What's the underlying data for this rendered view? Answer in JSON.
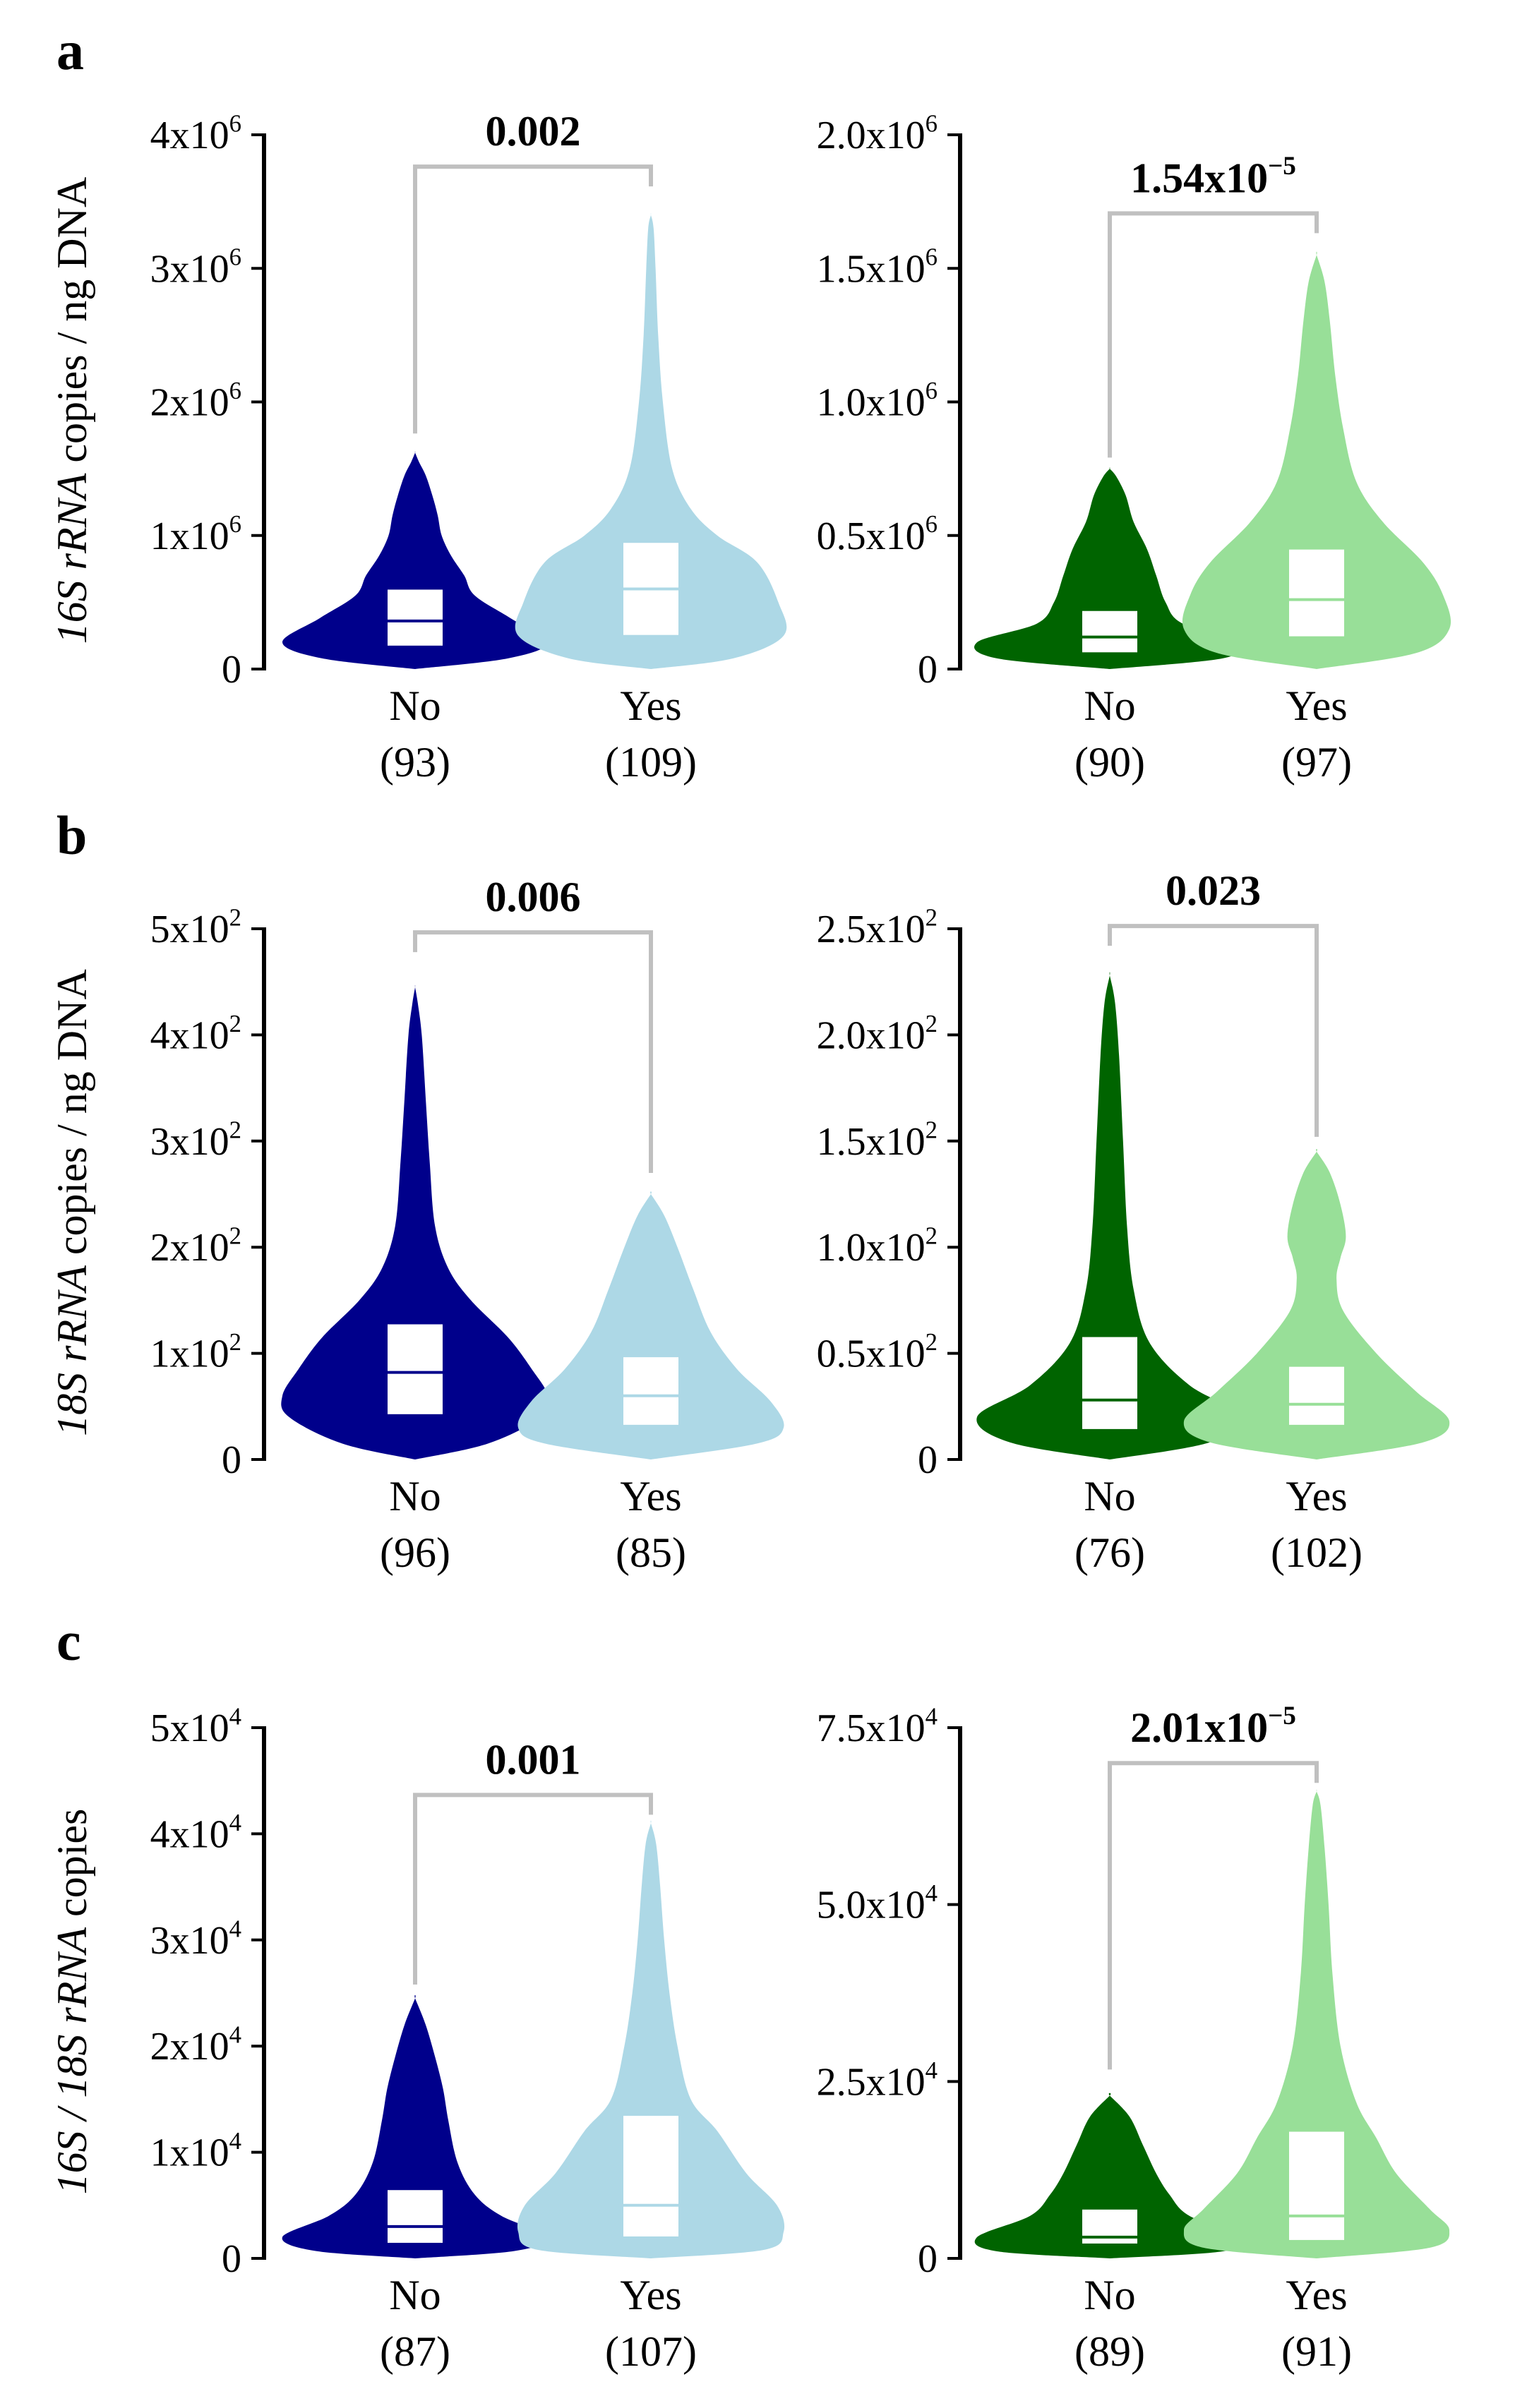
{
  "panel_labels": [
    "a",
    "b",
    "c"
  ],
  "row_ylabels": [
    {
      "italic": "16S rRNA",
      "rest": " copies / ng DNA"
    },
    {
      "italic": "18S rRNA",
      "rest": " copies / ng DNA"
    },
    {
      "italic": "16S / 18S rRNA",
      "rest": " copies"
    }
  ],
  "colors": {
    "no_blue": "#00008b",
    "yes_blue": "#add8e6",
    "no_green": "#006400",
    "yes_green": "#98df98",
    "bracket": "#c0c0c0",
    "axis": "#000000",
    "box": "#ffffff"
  },
  "chart_data": [
    {
      "type": "violin",
      "panel": "a",
      "position": "left",
      "color_scheme": "blue",
      "ylim": [
        0,
        4000000
      ],
      "ticks": [
        {
          "v": 0,
          "m": "0",
          "e": ""
        },
        {
          "v": 1000000,
          "m": "1x10",
          "e": "6"
        },
        {
          "v": 2000000,
          "m": "2x10",
          "e": "6"
        },
        {
          "v": 3000000,
          "m": "3x10",
          "e": "6"
        },
        {
          "v": 4000000,
          "m": "4x10",
          "e": "6"
        }
      ],
      "pvalue": {
        "m": "0.002",
        "e": ""
      },
      "bracket_bottoms": [
        1700000,
        3550000
      ],
      "groups": [
        {
          "label": "No",
          "n": "(93)",
          "q1": 170000,
          "median": 360000,
          "q3": 600000,
          "profile": [
            [
              0,
              0
            ],
            [
              80000,
              0.7
            ],
            [
              200000,
              1
            ],
            [
              380000,
              0.72
            ],
            [
              550000,
              0.45
            ],
            [
              700000,
              0.37
            ],
            [
              850000,
              0.27
            ],
            [
              1000000,
              0.2
            ],
            [
              1150000,
              0.17
            ],
            [
              1300000,
              0.13
            ],
            [
              1450000,
              0.08
            ],
            [
              1550000,
              0.03
            ],
            [
              1620000,
              0
            ]
          ]
        },
        {
          "label": "Yes",
          "n": "(109)",
          "q1": 250000,
          "median": 600000,
          "q3": 950000,
          "profile": [
            [
              0,
              0
            ],
            [
              80000,
              0.62
            ],
            [
              250000,
              1
            ],
            [
              500000,
              0.96
            ],
            [
              800000,
              0.8
            ],
            [
              1000000,
              0.5
            ],
            [
              1200000,
              0.3
            ],
            [
              1500000,
              0.16
            ],
            [
              2000000,
              0.09
            ],
            [
              2500000,
              0.055
            ],
            [
              3000000,
              0.035
            ],
            [
              3300000,
              0.02
            ],
            [
              3400000,
              0
            ]
          ]
        }
      ]
    },
    {
      "type": "violin",
      "panel": "a",
      "position": "right",
      "color_scheme": "green",
      "ylim": [
        0,
        2000000
      ],
      "ticks": [
        {
          "v": 0,
          "m": "0",
          "e": ""
        },
        {
          "v": 500000,
          "m": "0.5x10",
          "e": "6"
        },
        {
          "v": 1000000,
          "m": "1.0x10",
          "e": "6"
        },
        {
          "v": 1500000,
          "m": "1.5x10",
          "e": "6"
        },
        {
          "v": 2000000,
          "m": "2.0x10",
          "e": "6"
        }
      ],
      "pvalue": {
        "m": "1.54x10",
        "e": "−5"
      },
      "bracket_bottoms": [
        760000,
        1600000
      ],
      "groups": [
        {
          "label": "No",
          "n": "(90)",
          "q1": 60000,
          "median": 120000,
          "q3": 220000,
          "profile": [
            [
              0,
              0
            ],
            [
              40000,
              0.85
            ],
            [
              100000,
              1
            ],
            [
              170000,
              0.55
            ],
            [
              250000,
              0.42
            ],
            [
              350000,
              0.35
            ],
            [
              450000,
              0.28
            ],
            [
              550000,
              0.18
            ],
            [
              650000,
              0.12
            ],
            [
              720000,
              0.05
            ],
            [
              750000,
              0
            ]
          ]
        },
        {
          "label": "Yes",
          "n": "(97)",
          "q1": 120000,
          "median": 260000,
          "q3": 450000,
          "profile": [
            [
              0,
              0
            ],
            [
              60000,
              0.75
            ],
            [
              150000,
              1
            ],
            [
              280000,
              0.95
            ],
            [
              400000,
              0.8
            ],
            [
              550000,
              0.5
            ],
            [
              700000,
              0.3
            ],
            [
              900000,
              0.2
            ],
            [
              1100000,
              0.14
            ],
            [
              1300000,
              0.1
            ],
            [
              1450000,
              0.06
            ],
            [
              1550000,
              0
            ]
          ]
        }
      ]
    },
    {
      "type": "violin",
      "panel": "b",
      "position": "left",
      "color_scheme": "blue",
      "ylim": [
        0,
        500
      ],
      "ticks": [
        {
          "v": 0,
          "m": "0",
          "e": ""
        },
        {
          "v": 100,
          "m": "1x10",
          "e": "2"
        },
        {
          "v": 200,
          "m": "2x10",
          "e": "2"
        },
        {
          "v": 300,
          "m": "3x10",
          "e": "2"
        },
        {
          "v": 400,
          "m": "4x10",
          "e": "2"
        },
        {
          "v": 500,
          "m": "5x10",
          "e": "2"
        }
      ],
      "pvalue": {
        "m": "0.006",
        "e": ""
      },
      "bracket_bottoms": [
        470,
        262
      ],
      "groups": [
        {
          "label": "No",
          "n": "(96)",
          "q1": 42,
          "median": 82,
          "q3": 128,
          "profile": [
            [
              0,
              0
            ],
            [
              15,
              0.55
            ],
            [
              40,
              0.95
            ],
            [
              60,
              1
            ],
            [
              85,
              0.88
            ],
            [
              115,
              0.7
            ],
            [
              150,
              0.42
            ],
            [
              180,
              0.25
            ],
            [
              220,
              0.15
            ],
            [
              280,
              0.11
            ],
            [
              340,
              0.08
            ],
            [
              400,
              0.05
            ],
            [
              430,
              0.02
            ],
            [
              445,
              0
            ]
          ]
        },
        {
          "label": "Yes",
          "n": "(85)",
          "q1": 32,
          "median": 60,
          "q3": 97,
          "profile": [
            [
              0,
              0
            ],
            [
              15,
              0.8
            ],
            [
              30,
              1
            ],
            [
              55,
              0.9
            ],
            [
              85,
              0.65
            ],
            [
              120,
              0.45
            ],
            [
              160,
              0.32
            ],
            [
              200,
              0.2
            ],
            [
              230,
              0.1
            ],
            [
              250,
              0
            ]
          ]
        }
      ]
    },
    {
      "type": "violin",
      "panel": "b",
      "position": "right",
      "color_scheme": "green",
      "ylim": [
        0,
        250
      ],
      "ticks": [
        {
          "v": 0,
          "m": "0",
          "e": ""
        },
        {
          "v": 50,
          "m": "0.5x10",
          "e": "2"
        },
        {
          "v": 100,
          "m": "1.0x10",
          "e": "2"
        },
        {
          "v": 150,
          "m": "1.5x10",
          "e": "2"
        },
        {
          "v": 200,
          "m": "2.0x10",
          "e": "2"
        },
        {
          "v": 250,
          "m": "2.5x10",
          "e": "2"
        }
      ],
      "pvalue": {
        "m": "0.023",
        "e": ""
      },
      "bracket_bottoms": [
        238,
        148
      ],
      "groups": [
        {
          "label": "No",
          "n": "(76)",
          "q1": 14,
          "median": 28,
          "q3": 58,
          "profile": [
            [
              0,
              0
            ],
            [
              8,
              0.75
            ],
            [
              20,
              1
            ],
            [
              35,
              0.6
            ],
            [
              55,
              0.3
            ],
            [
              80,
              0.18
            ],
            [
              110,
              0.13
            ],
            [
              150,
              0.1
            ],
            [
              190,
              0.07
            ],
            [
              215,
              0.04
            ],
            [
              228,
              0
            ]
          ]
        },
        {
          "label": "Yes",
          "n": "(102)",
          "q1": 16,
          "median": 26,
          "q3": 44,
          "profile": [
            [
              0,
              0
            ],
            [
              8,
              0.8
            ],
            [
              18,
              1
            ],
            [
              32,
              0.75
            ],
            [
              50,
              0.45
            ],
            [
              70,
              0.2
            ],
            [
              85,
              0.15
            ],
            [
              95,
              0.18
            ],
            [
              105,
              0.22
            ],
            [
              120,
              0.18
            ],
            [
              135,
              0.1
            ],
            [
              145,
              0
            ]
          ]
        }
      ]
    },
    {
      "type": "violin",
      "panel": "c",
      "position": "left",
      "color_scheme": "blue",
      "ylim": [
        0,
        50000
      ],
      "ticks": [
        {
          "v": 0,
          "m": "0",
          "e": ""
        },
        {
          "v": 10000,
          "m": "1x10",
          "e": "4"
        },
        {
          "v": 20000,
          "m": "2x10",
          "e": "4"
        },
        {
          "v": 30000,
          "m": "3x10",
          "e": "4"
        },
        {
          "v": 40000,
          "m": "4x10",
          "e": "4"
        },
        {
          "v": 50000,
          "m": "5x10",
          "e": "4"
        }
      ],
      "pvalue": {
        "m": "0.001",
        "e": ""
      },
      "bracket_bottoms": [
        25000,
        41000
      ],
      "groups": [
        {
          "label": "No",
          "n": "(87)",
          "q1": 1400,
          "median": 3000,
          "q3": 6500,
          "profile": [
            [
              0,
              0
            ],
            [
              700,
              0.75
            ],
            [
              2000,
              1
            ],
            [
              4000,
              0.65
            ],
            [
              6000,
              0.45
            ],
            [
              9000,
              0.32
            ],
            [
              13000,
              0.25
            ],
            [
              16000,
              0.21
            ],
            [
              19000,
              0.15
            ],
            [
              22000,
              0.08
            ],
            [
              24500,
              0
            ]
          ]
        },
        {
          "label": "Yes",
          "n": "(107)",
          "q1": 2000,
          "median": 5000,
          "q3": 13500,
          "profile": [
            [
              0,
              0
            ],
            [
              800,
              0.85
            ],
            [
              2500,
              1
            ],
            [
              5000,
              0.95
            ],
            [
              8000,
              0.72
            ],
            [
              12000,
              0.5
            ],
            [
              15000,
              0.3
            ],
            [
              20000,
              0.2
            ],
            [
              25000,
              0.14
            ],
            [
              30000,
              0.1
            ],
            [
              35000,
              0.07
            ],
            [
              39000,
              0.04
            ],
            [
              41000,
              0
            ]
          ]
        }
      ]
    },
    {
      "type": "violin",
      "panel": "c",
      "position": "right",
      "color_scheme": "green",
      "ylim": [
        0,
        75000
      ],
      "ticks": [
        {
          "v": 0,
          "m": "0",
          "e": ""
        },
        {
          "v": 25000,
          "m": "2.5x10",
          "e": "4"
        },
        {
          "v": 50000,
          "m": "5.0x10",
          "e": "4"
        },
        {
          "v": 75000,
          "m": "7.5x10",
          "e": "4"
        }
      ],
      "pvalue": {
        "m": "2.01x10",
        "e": "−5"
      },
      "bracket_bottoms": [
        25500,
        66000
      ],
      "groups": [
        {
          "label": "No",
          "n": "(89)",
          "q1": 2000,
          "median": 3000,
          "q3": 7000,
          "profile": [
            [
              0,
              0
            ],
            [
              1000,
              0.85
            ],
            [
              3000,
              1
            ],
            [
              6000,
              0.6
            ],
            [
              9000,
              0.45
            ],
            [
              12000,
              0.35
            ],
            [
              16000,
              0.25
            ],
            [
              20000,
              0.15
            ],
            [
              23000,
              0
            ]
          ]
        },
        {
          "label": "Yes",
          "n": "(91)",
          "q1": 2500,
          "median": 6000,
          "q3": 18000,
          "profile": [
            [
              0,
              0
            ],
            [
              1500,
              0.85
            ],
            [
              4000,
              1
            ],
            [
              7000,
              0.85
            ],
            [
              12000,
              0.6
            ],
            [
              17000,
              0.45
            ],
            [
              22000,
              0.3
            ],
            [
              30000,
              0.18
            ],
            [
              40000,
              0.12
            ],
            [
              50000,
              0.09
            ],
            [
              58000,
              0.06
            ],
            [
              64000,
              0.03
            ],
            [
              66000,
              0
            ]
          ]
        }
      ]
    }
  ]
}
